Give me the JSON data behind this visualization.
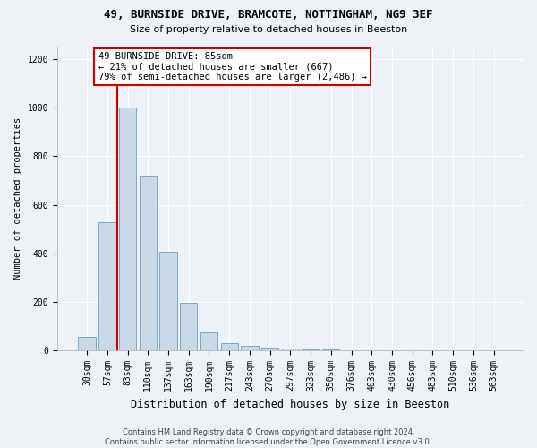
{
  "title1": "49, BURNSIDE DRIVE, BRAMCOTE, NOTTINGHAM, NG9 3EF",
  "title2": "Size of property relative to detached houses in Beeston",
  "xlabel": "Distribution of detached houses by size in Beeston",
  "ylabel": "Number of detached properties",
  "bar_color": "#c9d9e8",
  "bar_edge_color": "#7baac7",
  "categories": [
    "30sqm",
    "57sqm",
    "83sqm",
    "110sqm",
    "137sqm",
    "163sqm",
    "190sqm",
    "217sqm",
    "243sqm",
    "270sqm",
    "297sqm",
    "323sqm",
    "350sqm",
    "376sqm",
    "403sqm",
    "430sqm",
    "456sqm",
    "483sqm",
    "510sqm",
    "536sqm",
    "563sqm"
  ],
  "values": [
    55,
    530,
    1000,
    720,
    405,
    195,
    75,
    30,
    18,
    13,
    8,
    5,
    3,
    2,
    1,
    0,
    0,
    2,
    0,
    0,
    0
  ],
  "red_line_x": 1.5,
  "annotation_text": "49 BURNSIDE DRIVE: 85sqm\n← 21% of detached houses are smaller (667)\n79% of semi-detached houses are larger (2,486) →",
  "annotation_box_color": "white",
  "annotation_box_edge_color": "#cc0000",
  "red_line_color": "#cc0000",
  "bg_color": "#eef2f7",
  "grid_color": "white",
  "footnote": "Contains HM Land Registry data © Crown copyright and database right 2024.\nContains public sector information licensed under the Open Government Licence v3.0.",
  "ylim": [
    0,
    1250
  ],
  "yticks": [
    0,
    200,
    400,
    600,
    800,
    1000,
    1200
  ],
  "title1_fontsize": 9,
  "title2_fontsize": 8,
  "xlabel_fontsize": 8.5,
  "ylabel_fontsize": 7.5,
  "tick_fontsize": 7,
  "annotation_fontsize": 7.5,
  "footnote_fontsize": 6
}
